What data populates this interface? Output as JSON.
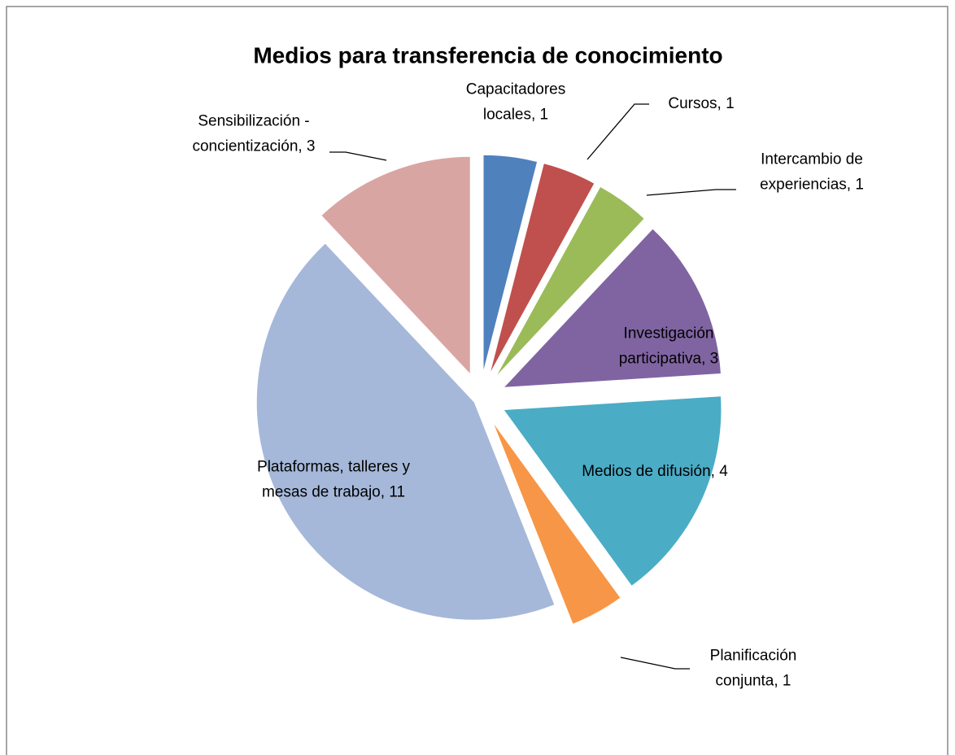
{
  "chart_data": {
    "type": "pie",
    "title": "Medios para transferencia de conocimiento",
    "values": [
      1,
      1,
      1,
      3,
      4,
      1,
      11,
      3
    ],
    "value_labels": [
      "Capacitadores locales, 1",
      "Cursos, 1",
      "Intercambio de experiencias, 1",
      "Investigación participativa, 3",
      "Medios de difusión, 4",
      "Planificación conjunta, 1",
      "Plataformas, talleres y mesas de trabajo, 11",
      "Sensibilización - concientización, 3"
    ],
    "colors": [
      "#4f81bd",
      "#c0504d",
      "#9bbb59",
      "#8064a2",
      "#4bacc6",
      "#f79646",
      "#a5b8d9",
      "#d9a5a3"
    ]
  }
}
